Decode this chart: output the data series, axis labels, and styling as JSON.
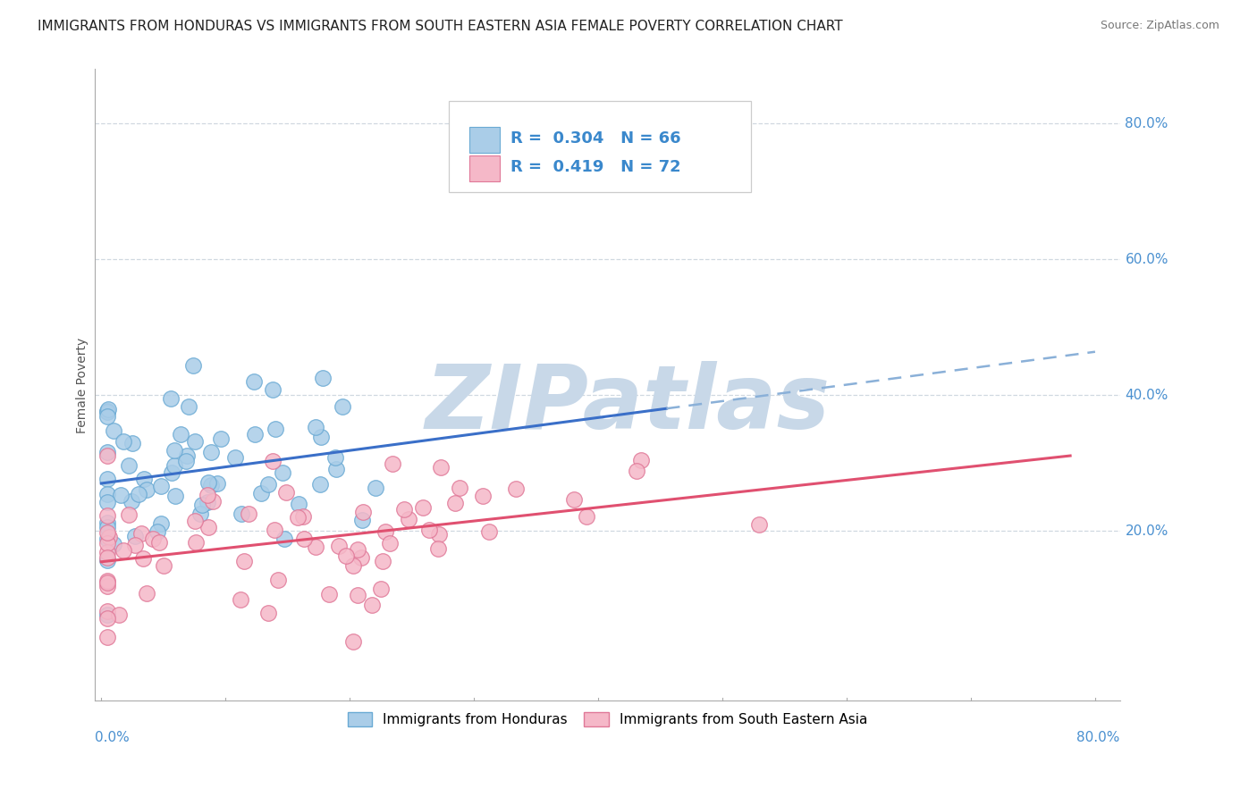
{
  "title": "IMMIGRANTS FROM HONDURAS VS IMMIGRANTS FROM SOUTH EASTERN ASIA FEMALE POVERTY CORRELATION CHART",
  "source": "Source: ZipAtlas.com",
  "ylabel": "Female Poverty",
  "y_tick_labels": [
    "20.0%",
    "40.0%",
    "60.0%",
    "80.0%"
  ],
  "y_tick_values": [
    0.2,
    0.4,
    0.6,
    0.8
  ],
  "xlim": [
    0.0,
    0.8
  ],
  "ylim": [
    -0.05,
    0.88
  ],
  "legend_entries": [
    {
      "label": "Immigrants from Honduras",
      "color": "#aacde8",
      "edge": "#6aaad4",
      "R": 0.304,
      "N": 66
    },
    {
      "label": "Immigrants from South Eastern Asia",
      "color": "#f5b8c8",
      "edge": "#e07898",
      "R": 0.419,
      "N": 72
    }
  ],
  "blue_line_color": "#3a6fc8",
  "pink_line_color": "#e05070",
  "blue_dash_color": "#8ab0d8",
  "background_color": "#ffffff",
  "grid_color": "#d0d8e0",
  "watermark_text": "ZIPatlas",
  "watermark_color": "#c8d8e8",
  "title_fontsize": 11,
  "source_fontsize": 9,
  "axis_label_fontsize": 10,
  "tick_label_fontsize": 11,
  "legend_fontsize": 13
}
